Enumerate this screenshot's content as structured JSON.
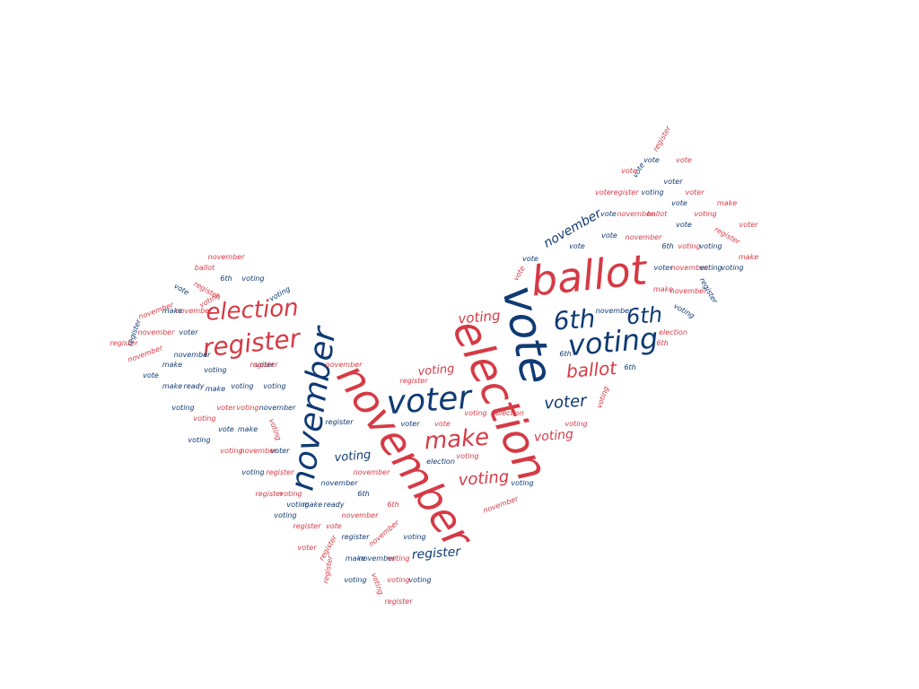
{
  "palette": {
    "red": "#d63a45",
    "navy": "#0f3a73"
  },
  "words": [
    {
      "text": "vote",
      "color": "navy",
      "rot": 78
    },
    {
      "text": "ballot",
      "color": "red",
      "rot": -6
    },
    {
      "text": "election",
      "color": "red",
      "rot": 66
    },
    {
      "text": "november",
      "color": "red",
      "rot": 57
    },
    {
      "text": "november",
      "color": "navy",
      "rot": -82
    },
    {
      "text": "voter",
      "color": "navy",
      "rot": -4
    },
    {
      "text": "voting",
      "color": "navy",
      "rot": -5
    },
    {
      "text": "election",
      "color": "red",
      "rot": -3
    },
    {
      "text": "register",
      "color": "red",
      "rot": -6
    },
    {
      "text": "6th",
      "color": "navy",
      "rot": -4
    },
    {
      "text": "6th",
      "color": "navy",
      "rot": -4
    },
    {
      "text": "make",
      "color": "red",
      "rot": -4
    },
    {
      "text": "ballot",
      "color": "red",
      "rot": -4
    },
    {
      "text": "voting",
      "color": "red",
      "rot": -5
    },
    {
      "text": "voter",
      "color": "navy",
      "rot": -4
    },
    {
      "text": "voting",
      "color": "red",
      "rot": -4
    },
    {
      "text": "register",
      "color": "navy",
      "rot": -4
    },
    {
      "text": "november",
      "color": "navy",
      "rot": -30
    },
    {
      "text": "voting",
      "color": "red",
      "rot": -5
    },
    {
      "text": "voting",
      "color": "red",
      "rot": -5
    },
    {
      "text": "voting",
      "color": "navy",
      "rot": -5
    },
    {
      "text": "register",
      "color": "red",
      "rot": -60
    },
    {
      "text": "vote",
      "color": "navy",
      "rot": -60
    },
    {
      "text": "vote",
      "color": "navy",
      "rot": 0
    },
    {
      "text": "vote",
      "color": "red",
      "rot": 0
    },
    {
      "text": "vote",
      "color": "red",
      "rot": 0
    },
    {
      "text": "voter",
      "color": "navy",
      "rot": 0
    },
    {
      "text": "vote",
      "color": "red",
      "rot": 0
    },
    {
      "text": "register",
      "color": "red",
      "rot": 0
    },
    {
      "text": "voting",
      "color": "navy",
      "rot": 0
    },
    {
      "text": "voter",
      "color": "red",
      "rot": 0
    },
    {
      "text": "vote",
      "color": "navy",
      "rot": 0
    },
    {
      "text": "make",
      "color": "red",
      "rot": 0
    },
    {
      "text": "vote",
      "color": "navy",
      "rot": 0
    },
    {
      "text": "november",
      "color": "red",
      "rot": 0
    },
    {
      "text": "ballot",
      "color": "red",
      "rot": 0
    },
    {
      "text": "voting",
      "color": "red",
      "rot": 0
    },
    {
      "text": "vote",
      "color": "navy",
      "rot": 0
    },
    {
      "text": "voter",
      "color": "red",
      "rot": 0
    },
    {
      "text": "vote",
      "color": "navy",
      "rot": 0
    },
    {
      "text": "november",
      "color": "red",
      "rot": 0
    },
    {
      "text": "register",
      "color": "red",
      "rot": 30
    },
    {
      "text": "vote",
      "color": "navy",
      "rot": 0
    },
    {
      "text": "6th",
      "color": "navy",
      "rot": 0
    },
    {
      "text": "voting",
      "color": "red",
      "rot": 0
    },
    {
      "text": "voting",
      "color": "navy",
      "rot": 0
    },
    {
      "text": "make",
      "color": "red",
      "rot": 0
    },
    {
      "text": "vote",
      "color": "navy",
      "rot": 0
    },
    {
      "text": "vote",
      "color": "red",
      "rot": -60
    },
    {
      "text": "voter",
      "color": "navy",
      "rot": 0
    },
    {
      "text": "november",
      "color": "red",
      "rot": 0
    },
    {
      "text": "voting",
      "color": "navy",
      "rot": 0
    },
    {
      "text": "voting",
      "color": "navy",
      "rot": 0
    },
    {
      "text": "make",
      "color": "red",
      "rot": 0
    },
    {
      "text": "november",
      "color": "red",
      "rot": 0
    },
    {
      "text": "register",
      "color": "navy",
      "rot": 60
    },
    {
      "text": "voting",
      "color": "navy",
      "rot": 30
    },
    {
      "text": "november",
      "color": "navy",
      "rot": 0
    },
    {
      "text": "election",
      "color": "red",
      "rot": 0
    },
    {
      "text": "6th",
      "color": "red",
      "rot": 0
    },
    {
      "text": "6th",
      "color": "navy",
      "rot": 0
    },
    {
      "text": "6th",
      "color": "navy",
      "rot": 0
    },
    {
      "text": "voting",
      "color": "red",
      "rot": -70
    },
    {
      "text": "register",
      "color": "red",
      "rot": 0
    },
    {
      "text": "voting",
      "color": "red",
      "rot": 0
    },
    {
      "text": "election",
      "color": "red",
      "rot": 0
    },
    {
      "text": "voting",
      "color": "red",
      "rot": 0
    },
    {
      "text": "voter",
      "color": "navy",
      "rot": 0
    },
    {
      "text": "vote",
      "color": "red",
      "rot": 0
    },
    {
      "text": "november",
      "color": "red",
      "rot": 0
    },
    {
      "text": "voter",
      "color": "navy",
      "rot": 0
    },
    {
      "text": "election",
      "color": "navy",
      "rot": 0
    },
    {
      "text": "voting",
      "color": "red",
      "rot": 0
    },
    {
      "text": "november",
      "color": "red",
      "rot": 0
    },
    {
      "text": "voting",
      "color": "navy",
      "rot": 0
    },
    {
      "text": "november",
      "color": "red",
      "rot": -20
    },
    {
      "text": "november",
      "color": "navy",
      "rot": 0
    },
    {
      "text": "6th",
      "color": "navy",
      "rot": 0
    },
    {
      "text": "6th",
      "color": "red",
      "rot": 0
    },
    {
      "text": "november",
      "color": "red",
      "rot": 0
    },
    {
      "text": "voting",
      "color": "navy",
      "rot": 0
    },
    {
      "text": "november",
      "color": "red",
      "rot": -40
    },
    {
      "text": "november",
      "color": "navy",
      "rot": 0
    },
    {
      "text": "voting",
      "color": "red",
      "rot": 0
    },
    {
      "text": "register",
      "color": "navy",
      "rot": 0
    },
    {
      "text": "make",
      "color": "navy",
      "rot": 0
    },
    {
      "text": "voting",
      "color": "red",
      "rot": 0
    },
    {
      "text": "voting",
      "color": "red",
      "rot": 70
    },
    {
      "text": "voting",
      "color": "navy",
      "rot": 0
    },
    {
      "text": "register",
      "color": "red",
      "rot": 0
    },
    {
      "text": "voting",
      "color": "navy",
      "rot": 0
    },
    {
      "text": "register",
      "color": "red",
      "rot": -60
    },
    {
      "text": "register",
      "color": "red",
      "rot": -80
    },
    {
      "text": "voting",
      "color": "navy",
      "rot": 0
    },
    {
      "text": "register",
      "color": "red",
      "rot": 0
    },
    {
      "text": "voting",
      "color": "red",
      "rot": 0
    },
    {
      "text": "make",
      "color": "navy",
      "rot": 0
    },
    {
      "text": "ready",
      "color": "navy",
      "rot": 0
    },
    {
      "text": "voting",
      "color": "navy",
      "rot": 0
    },
    {
      "text": "register",
      "color": "red",
      "rot": 0
    },
    {
      "text": "vote",
      "color": "red",
      "rot": 0
    },
    {
      "text": "voter",
      "color": "red",
      "rot": 0
    },
    {
      "text": "voting",
      "color": "red",
      "rot": 0
    },
    {
      "text": "november",
      "color": "red",
      "rot": 0
    },
    {
      "text": "voter",
      "color": "navy",
      "rot": 0
    },
    {
      "text": "voting",
      "color": "navy",
      "rot": 0
    },
    {
      "text": "voting",
      "color": "red",
      "rot": 0
    },
    {
      "text": "register",
      "color": "navy",
      "rot": 0
    },
    {
      "text": "vote",
      "color": "navy",
      "rot": 0
    },
    {
      "text": "make",
      "color": "navy",
      "rot": 0
    },
    {
      "text": "voting",
      "color": "red",
      "rot": 70
    },
    {
      "text": "voting",
      "color": "navy",
      "rot": 0
    },
    {
      "text": "register",
      "color": "red",
      "rot": 0
    },
    {
      "text": "voting",
      "color": "navy",
      "rot": 0
    },
    {
      "text": "voter",
      "color": "red",
      "rot": 0
    },
    {
      "text": "voting",
      "color": "red",
      "rot": 0
    },
    {
      "text": "make",
      "color": "navy",
      "rot": 0
    },
    {
      "text": "ready",
      "color": "navy",
      "rot": 0
    },
    {
      "text": "voting",
      "color": "navy",
      "rot": 0
    },
    {
      "text": "november",
      "color": "navy",
      "rot": 0
    },
    {
      "text": "vote",
      "color": "navy",
      "rot": 0
    },
    {
      "text": "make",
      "color": "navy",
      "rot": 0
    },
    {
      "text": "voting",
      "color": "navy",
      "rot": 0
    },
    {
      "text": "register",
      "color": "red",
      "rot": 0
    },
    {
      "text": "november",
      "color": "red",
      "rot": -20
    },
    {
      "text": "make",
      "color": "navy",
      "rot": 0
    },
    {
      "text": "voting",
      "color": "navy",
      "rot": 0
    },
    {
      "text": "november",
      "color": "navy",
      "rot": 0
    },
    {
      "text": "register",
      "color": "navy",
      "rot": -70
    },
    {
      "text": "november",
      "color": "red",
      "rot": 0
    },
    {
      "text": "november",
      "color": "red",
      "rot": 0
    },
    {
      "text": "make",
      "color": "navy",
      "rot": 0
    },
    {
      "text": "voter",
      "color": "navy",
      "rot": 0
    },
    {
      "text": "november",
      "color": "red",
      "rot": -20
    },
    {
      "text": "register",
      "color": "red",
      "rot": 30
    },
    {
      "text": "6th",
      "color": "navy",
      "rot": 0
    },
    {
      "text": "voting",
      "color": "navy",
      "rot": 0
    },
    {
      "text": "ballot",
      "color": "red",
      "rot": 0
    },
    {
      "text": "voting",
      "color": "navy",
      "rot": -30
    },
    {
      "text": "november",
      "color": "red",
      "rot": 0
    },
    {
      "text": "vote",
      "color": "navy",
      "rot": 30
    },
    {
      "text": "voting",
      "color": "red",
      "rot": -30
    },
    {
      "text": "register",
      "color": "red",
      "rot": 0
    },
    {
      "text": "november",
      "color": "red",
      "rot": 0
    },
    {
      "text": "voting",
      "color": "red",
      "rot": 0
    },
    {
      "text": "vote",
      "color": "red",
      "rot": 50
    },
    {
      "text": "6th",
      "color": "navy",
      "rot": 0
    },
    {
      "text": "voting",
      "color": "navy",
      "rot": 0
    },
    {
      "text": "voting",
      "color": "navy",
      "rot": 0
    },
    {
      "text": "6th",
      "color": "red",
      "rot": 0
    }
  ]
}
